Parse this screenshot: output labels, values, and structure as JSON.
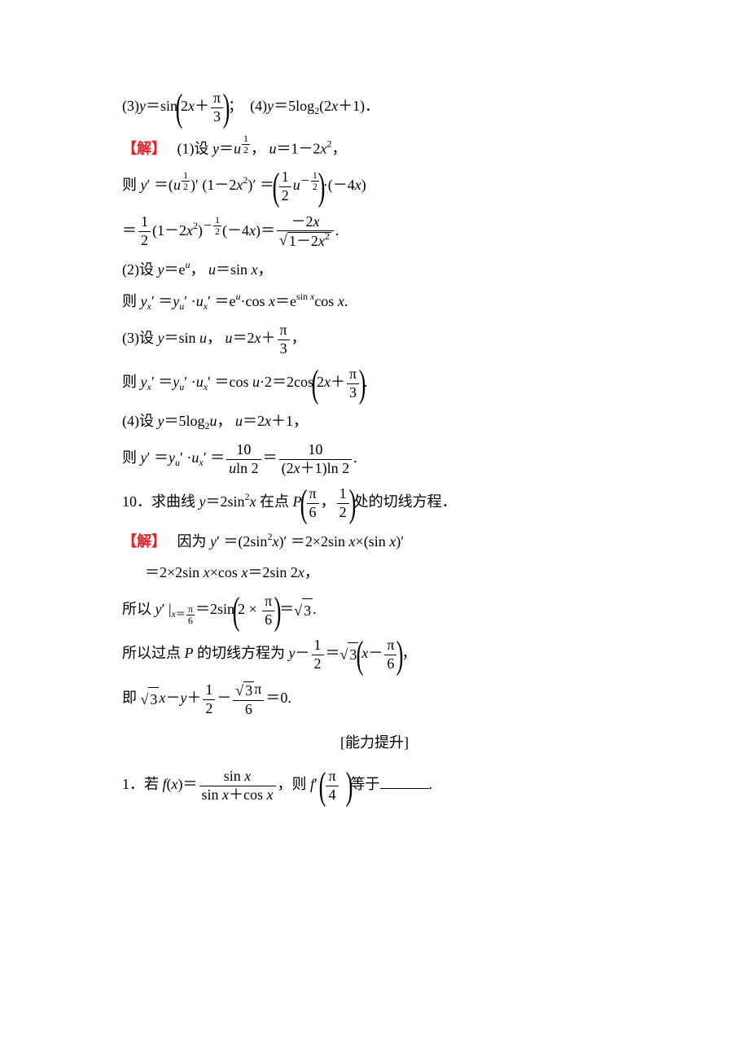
{
  "colors": {
    "text": "#000000",
    "solution_label": "#ed1c24",
    "background": "#ffffff"
  },
  "typography": {
    "base_font_size_pt": 14,
    "sup_sub_font_size_pt": 9,
    "font_family": "Times New Roman / SimSun serif"
  },
  "content": {
    "eq3_4": {
      "p3_prefix": "(3)",
      "p3_y": "y",
      "p3_eq": "＝sin",
      "p3_inner_a": "2",
      "p3_inner_x": "x",
      "p3_inner_plus": "＋",
      "p3_pi": "π",
      "p3_den": "3",
      "p3_semicolon": "；",
      "p4_prefix": "(4)",
      "p4_y": "y",
      "p4_text": "＝5log",
      "p4_sub": "2",
      "p4_arg": "(2",
      "p4_x": "x",
      "p4_tail": "＋1)．"
    },
    "sol_label": "【解】",
    "sol1": {
      "prefix": "(1)设 ",
      "y": "y",
      "eq1": "＝",
      "u": "u",
      "exp_num": "1",
      "exp_den": "2",
      "comma": "，",
      "u2": "u",
      "eq2": "＝1－2",
      "x": "x",
      "sq": "2",
      "end": "，"
    },
    "sol1_line2": {
      "then": "则 ",
      "y": "y",
      "prime": "′",
      "eq1": "＝(",
      "u": "u",
      "exp_num": "1",
      "exp_den": "2",
      "close": ")′",
      "space": " ",
      "factor2_open": "(1－2",
      "x": "x",
      "sq": "2",
      "factor2_close": ")′",
      "eq2": "＝",
      "half_num": "1",
      "half_den": "2",
      "u2": "u",
      "neg_exp_num": "1",
      "neg_exp_den": "2",
      "mul": "·(－4",
      "x2": "x",
      "tail": ")"
    },
    "sol1_line3": {
      "eq": "＝",
      "half_num": "1",
      "half_den": "2",
      "open": "(1－2",
      "x": "x",
      "sq": "2",
      "close": ")",
      "neg": "－",
      "exp_num": "1",
      "exp_den": "2",
      "mul": "(－4",
      "x2": "x",
      "tail": ")＝",
      "frac_num_a": "－2",
      "frac_num_x": "x",
      "frac_den_a": "1－2",
      "frac_den_x": "x",
      "frac_den_sq": "2",
      "period": "."
    },
    "sol2": {
      "line1_a": "(2)设 ",
      "y": "y",
      "line1_b": "＝e",
      "u": "u",
      "line1_c": "，",
      "u2": "u",
      "line1_d": "＝sin ",
      "x": "x",
      "line1_e": "，",
      "line2_then": "则 ",
      "yx": "y",
      "sub_x": "x",
      "prime": "′",
      "eq1": "＝",
      "yu": "y",
      "sub_u": "u",
      "dot": " ·",
      "ux": "u",
      "eq2": "＝e",
      "sup_u": "u",
      "cos": "·cos ",
      "x2": "x",
      "eq3": "＝e",
      "sinx": "sin ",
      "sinx_x": "x",
      "cos2": "cos ",
      "x3": "x",
      "period": "."
    },
    "sol3": {
      "line1_a": "(3)设 ",
      "y": "y",
      "line1_b": "＝sin ",
      "u": "u",
      "line1_c": "，",
      "u2": "u",
      "line1_d": "＝2",
      "x": "x",
      "line1_e": "＋",
      "pi": "π",
      "den": "3",
      "line1_f": "，",
      "line2_then": "则 ",
      "yx": "y",
      "sub_x": "x",
      "prime": "′",
      "eq1": "＝",
      "yu": "y",
      "sub_u": "u",
      "dot": " ·",
      "ux": "u",
      "eq2": "＝cos ",
      "u3": "u",
      "mul2": "·2＝2cos",
      "inner_a": "2",
      "inner_x": "x",
      "inner_plus": "＋",
      "period": "."
    },
    "sol4": {
      "line1_a": "(4)设 ",
      "y": "y",
      "line1_b": "＝5log",
      "sub2": "2",
      "u": "u",
      "line1_c": "，",
      "u2": "u",
      "line1_d": "＝2",
      "x": "x",
      "line1_e": "＋1，",
      "line2_then": "则 ",
      "yprime": "y",
      "prime": "′",
      "eq1": "＝",
      "yu": "y",
      "sub_u": "u",
      "dot": " ·",
      "ux": "u",
      "sub_x": "x",
      "eq2": "＝",
      "num1": "10",
      "den1_u": "u",
      "den1_ln": "ln 2",
      "eq3": "＝",
      "num2": "10",
      "den2_a": "(2",
      "den2_x": "x",
      "den2_b": "＋1)ln 2",
      "period": "."
    },
    "q10": {
      "prefix": "10．求曲线 ",
      "y": "y",
      "eq": "＝2sin",
      "sq": "2",
      "x": "x",
      "at": " 在点 ",
      "P": "P",
      "pi": "π",
      "den1": "6",
      "comma": "，",
      "num2": "1",
      "den2": "2",
      "tail": "处的切线方程．"
    },
    "q10sol": {
      "because": "因为 ",
      "y": "y",
      "prime": "′",
      "eq1": "＝(2sin",
      "sq": "2",
      "x": "x",
      "close": ")′",
      "eq2": "＝2×2sin ",
      "x2": "x",
      "times": "×(sin ",
      "x3": "x",
      "close2": ")′",
      "line2_eq": "＝2×2sin ",
      "x4": "x",
      "times2": "×cos ",
      "x5": "x",
      "eq3": "＝2sin 2",
      "x6": "x",
      "comma": "，",
      "so": "所以 ",
      "y2": "y",
      "bar": "|",
      "xeq": "x",
      "eqsign": "＝",
      "pi": "π",
      "den6": "6",
      "eq4": "＝2sin",
      "two": "2",
      "times3": "×",
      "eq5": "＝",
      "three": "3",
      "period": ".",
      "so2": "所以过点 ",
      "P": "P",
      "tangent": " 的切线方程为 ",
      "y3": "y",
      "minus": "－",
      "half_num": "1",
      "half_den": "2",
      "eq6": "＝",
      "x7": "x",
      "comma2": "，",
      "ie": "即 ",
      "x8": "x",
      "minus2": "－",
      "y4": "y",
      "plus": "＋",
      "eq7": "＝0."
    },
    "section": "[能力提升]",
    "q1b": {
      "prefix": "1．若 ",
      "f": "f",
      "open": "(",
      "x": "x",
      "close": ")＝",
      "num": "sin ",
      "num_x": "x",
      "den_a": "sin ",
      "den_x1": "x",
      "den_plus": "＋cos ",
      "den_x2": "x",
      "comma": "，则 ",
      "f2": "f",
      "prime": "′",
      "pi": "π",
      "four": "4",
      "tail": "等于",
      "period": "."
    }
  }
}
